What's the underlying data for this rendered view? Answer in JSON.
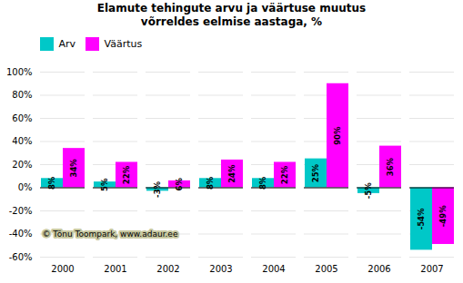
{
  "chart_data": {
    "type": "bar",
    "title": "Elamute tehingute arvu ja väärtuse muutus\nvõrreldes eelmise aastaga, %",
    "categories": [
      "2000",
      "2001",
      "2002",
      "2003",
      "2004",
      "2005",
      "2006",
      "2007"
    ],
    "series": [
      {
        "name": "Arv",
        "color": "#00C8C8",
        "values": [
          8,
          5,
          -3,
          8,
          8,
          25,
          -5,
          -54
        ],
        "value_labels": [
          "8%",
          "5%",
          "-3%",
          "8%",
          "8%",
          "25%",
          "-5%",
          "-54%"
        ]
      },
      {
        "name": "Väärtus",
        "color": "#FF00FF",
        "values": [
          34,
          22,
          6,
          24,
          22,
          90,
          36,
          -49
        ],
        "value_labels": [
          "34%",
          "22%",
          "6%",
          "24%",
          "22%",
          "90%",
          "36%",
          "-49%"
        ]
      }
    ],
    "ylim": [
      -60,
      100
    ],
    "yticks": [
      {
        "value": -60,
        "label": "-60%"
      },
      {
        "value": -40,
        "label": "-40%"
      },
      {
        "value": -20,
        "label": "-20%"
      },
      {
        "value": 0,
        "label": "0%"
      },
      {
        "value": 20,
        "label": "20%"
      },
      {
        "value": 40,
        "label": "40%"
      },
      {
        "value": 60,
        "label": "60%"
      },
      {
        "value": 80,
        "label": "80%"
      },
      {
        "value": 100,
        "label": "100%"
      }
    ],
    "grid": true,
    "legend": "upper left",
    "data_labels": true,
    "annotation": "© Tõnu Toompark, www.adaur.ee"
  }
}
